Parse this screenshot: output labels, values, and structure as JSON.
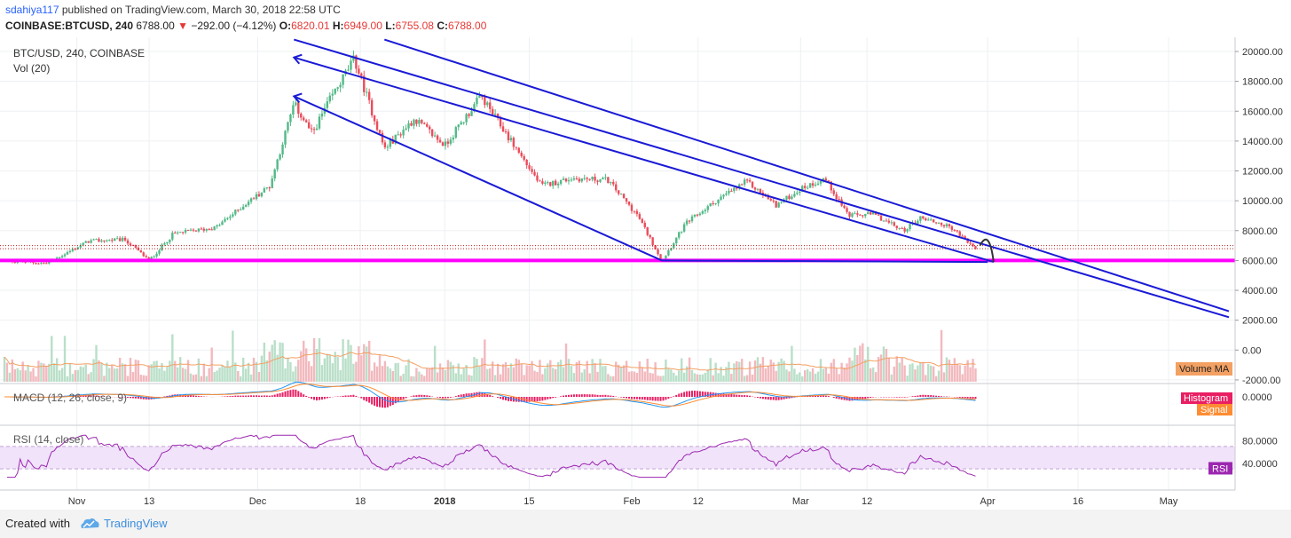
{
  "header": {
    "author": "sdahiya117",
    "published_text": "published on TradingView.com, March 30, 2018 22:58 UTC",
    "symbol": "COINBASE:BTCUSD, 240",
    "last": "6788.00",
    "change": "−292.00 (−4.12%)",
    "o_label": "O:",
    "o_value": "6820.01",
    "h_label": "H:",
    "h_value": "6949.00",
    "l_label": "L:",
    "l_value": "6755.08",
    "c_label": "C:",
    "c_value": "6788.00"
  },
  "footer": {
    "created_with": "Created with",
    "brand": "TradingView"
  },
  "colors": {
    "trendline": "#1a1ad6",
    "support": "#ff00ff",
    "up": "#53b987",
    "down": "#eb4d5c",
    "volume_ma": "#f3a063",
    "macd_line": "#2196f3",
    "signal_line": "#ff8c32",
    "histogram": "#e91e63",
    "rsi": "#9c27b0",
    "rsi_band": "#f0e3fa",
    "grid": "#edf0f3"
  },
  "chart_data": {
    "type": "candlestick",
    "title": "BTC/USD, 240, COINBASE",
    "volume_label": "Vol (20)",
    "x_tick_labels": [
      "Nov",
      "13",
      "Dec",
      "18",
      "2018",
      "15",
      "Feb",
      "12",
      "Mar",
      "12",
      "Apr",
      "16",
      "May"
    ],
    "y_tick_labels": [
      "20000.00",
      "18000.00",
      "16000.00",
      "14000.00",
      "12000.00",
      "10000.00",
      "8000.00",
      "6000.00",
      "4000.00",
      "2000.00",
      "0.00",
      "-2000.00"
    ],
    "ylim": [
      -2000,
      20000
    ],
    "close_series": [
      {
        "date": "2017-10-20",
        "close": 6000
      },
      {
        "date": "2017-10-27",
        "close": 5800
      },
      {
        "date": "2017-11-03",
        "close": 7300
      },
      {
        "date": "2017-11-09",
        "close": 7400
      },
      {
        "date": "2017-11-13",
        "close": 6000
      },
      {
        "date": "2017-11-17",
        "close": 7800
      },
      {
        "date": "2017-11-24",
        "close": 8200
      },
      {
        "date": "2017-11-29",
        "close": 9800
      },
      {
        "date": "2017-12-03",
        "close": 11000
      },
      {
        "date": "2017-12-07",
        "close": 16500
      },
      {
        "date": "2017-12-10",
        "close": 14500
      },
      {
        "date": "2017-12-13",
        "close": 16800
      },
      {
        "date": "2017-12-17",
        "close": 19500
      },
      {
        "date": "2017-12-22",
        "close": 13500
      },
      {
        "date": "2017-12-27",
        "close": 15500
      },
      {
        "date": "2018-01-01",
        "close": 13700
      },
      {
        "date": "2018-01-07",
        "close": 17000
      },
      {
        "date": "2018-01-12",
        "close": 14000
      },
      {
        "date": "2018-01-17",
        "close": 11000
      },
      {
        "date": "2018-01-22",
        "close": 11500
      },
      {
        "date": "2018-01-28",
        "close": 11400
      },
      {
        "date": "2018-02-02",
        "close": 9000
      },
      {
        "date": "2018-02-06",
        "close": 6000
      },
      {
        "date": "2018-02-10",
        "close": 8500
      },
      {
        "date": "2018-02-15",
        "close": 10000
      },
      {
        "date": "2018-02-20",
        "close": 11300
      },
      {
        "date": "2018-02-25",
        "close": 9700
      },
      {
        "date": "2018-03-01",
        "close": 10800
      },
      {
        "date": "2018-03-05",
        "close": 11500
      },
      {
        "date": "2018-03-09",
        "close": 9000
      },
      {
        "date": "2018-03-13",
        "close": 9100
      },
      {
        "date": "2018-03-18",
        "close": 8000
      },
      {
        "date": "2018-03-21",
        "close": 8900
      },
      {
        "date": "2018-03-26",
        "close": 8200
      },
      {
        "date": "2018-03-30",
        "close": 6788
      }
    ],
    "support_level": 6000,
    "dotted_levels": [
      7000,
      6790
    ],
    "trendlines": [
      {
        "from": {
          "date": "2017-12-07",
          "value": 20800
        },
        "to": {
          "date": "2018-05-11",
          "value": 2200
        }
      },
      {
        "from": {
          "date": "2017-12-22",
          "value": 20800
        },
        "to": {
          "date": "2018-05-11",
          "value": 2600
        }
      },
      {
        "from": {
          "date": "2017-12-07",
          "value": 19600
        },
        "to": {
          "date": "2018-04-02",
          "value": 5900
        }
      },
      {
        "from": {
          "date": "2017-12-07",
          "value": 17000
        },
        "to": {
          "date": "2018-02-06",
          "value": 6000
        }
      },
      {
        "from": {
          "date": "2018-02-06",
          "value": 6000
        },
        "to": {
          "date": "2018-04-01",
          "value": 5900
        }
      }
    ],
    "volume": {
      "ma_label": "Volume MA"
    },
    "macd": {
      "title": "MACD (12, 26, close, 9)",
      "y_tick_labels": [
        "0.0000"
      ],
      "legend": [
        "Histogram",
        "Signal"
      ]
    },
    "rsi": {
      "title": "RSI (14, close)",
      "y_tick_labels": [
        "80.0000",
        "40.0000"
      ],
      "band": [
        30,
        70
      ],
      "last_label": "RSI",
      "last_value": 31
    }
  }
}
